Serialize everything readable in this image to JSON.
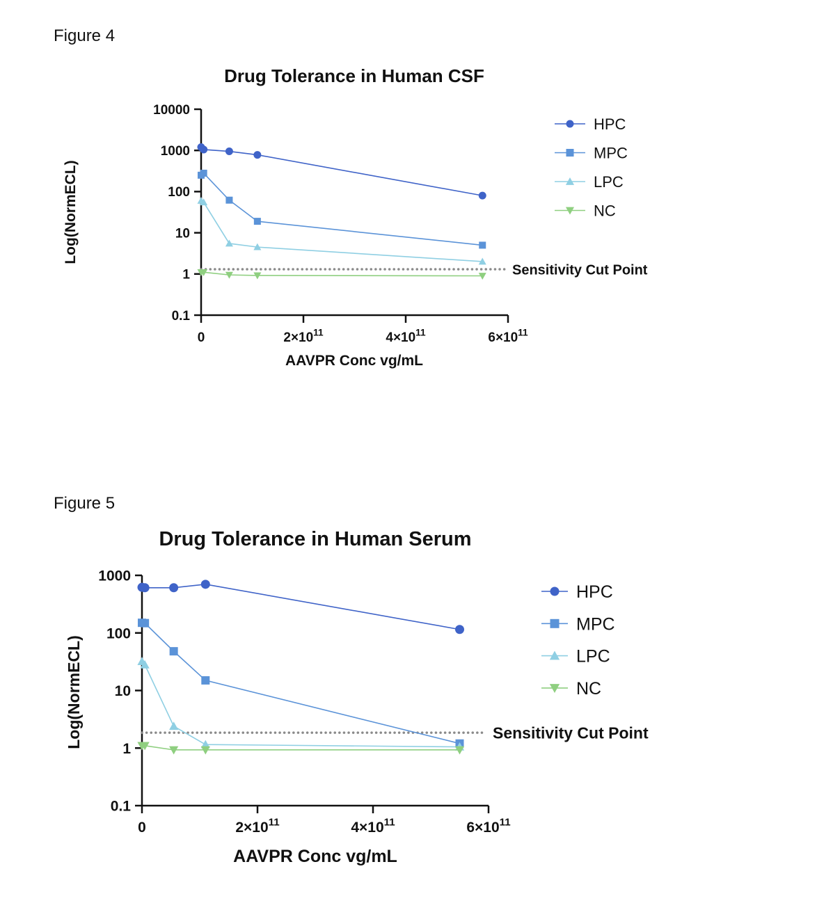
{
  "figures": [
    {
      "label": "Figure 4"
    },
    {
      "label": "Figure 5"
    }
  ],
  "chart_data": [
    {
      "type": "line",
      "title": "Drug Tolerance in Human CSF",
      "xlabel": "AAVPR Conc vg/mL",
      "ylabel": "Log(NormECL)",
      "yscale": "log",
      "xlim": [
        0,
        600000000000.0
      ],
      "ylim": [
        0.1,
        10000
      ],
      "x_ticks": [
        {
          "value": 0,
          "base": "0",
          "exp": ""
        },
        {
          "value": 200000000000.0,
          "base": "2×10",
          "exp": "11"
        },
        {
          "value": 400000000000.0,
          "base": "4×10",
          "exp": "11"
        },
        {
          "value": 600000000000.0,
          "base": "6×10",
          "exp": "11"
        }
      ],
      "y_ticks": [
        {
          "value": 0.1,
          "label": "0.1"
        },
        {
          "value": 1,
          "label": "1"
        },
        {
          "value": 10,
          "label": "10"
        },
        {
          "value": 100,
          "label": "100"
        },
        {
          "value": 1000,
          "label": "1000"
        },
        {
          "value": 10000,
          "label": "10000"
        }
      ],
      "series": [
        {
          "name": "HPC",
          "marker": "circle",
          "color": "#3f63c8",
          "x": [
            0,
            5000000000.0,
            55000000000.0,
            110000000000.0,
            550000000000.0
          ],
          "y": [
            1200,
            1050,
            950,
            780,
            80
          ]
        },
        {
          "name": "MPC",
          "marker": "square",
          "color": "#5b93d8",
          "x": [
            0,
            5000000000.0,
            55000000000.0,
            110000000000.0,
            550000000000.0
          ],
          "y": [
            250,
            280,
            62,
            19,
            5
          ]
        },
        {
          "name": "LPC",
          "marker": "triangle-up",
          "color": "#8fcfe3",
          "x": [
            0,
            5000000000.0,
            55000000000.0,
            110000000000.0,
            550000000000.0
          ],
          "y": [
            60,
            55,
            5.5,
            4.5,
            2
          ]
        },
        {
          "name": "NC",
          "marker": "triangle-down",
          "color": "#8fcf80",
          "x": [
            0,
            5000000000.0,
            55000000000.0,
            110000000000.0,
            550000000000.0
          ],
          "y": [
            1.1,
            1.1,
            0.95,
            0.92,
            0.9
          ]
        }
      ],
      "cut_point": {
        "label": "Sensitivity Cut Point",
        "value": 1.3
      },
      "legend": "top-right",
      "grid": false
    },
    {
      "type": "line",
      "title": "Drug Tolerance in Human Serum",
      "xlabel": "AAVPR Conc vg/mL",
      "ylabel": "Log(NormECL)",
      "yscale": "log",
      "xlim": [
        0,
        600000000000.0
      ],
      "ylim": [
        0.1,
        1000
      ],
      "x_ticks": [
        {
          "value": 0,
          "base": "0",
          "exp": ""
        },
        {
          "value": 200000000000.0,
          "base": "2×10",
          "exp": "11"
        },
        {
          "value": 400000000000.0,
          "base": "4×10",
          "exp": "11"
        },
        {
          "value": 600000000000.0,
          "base": "6×10",
          "exp": "11"
        }
      ],
      "y_ticks": [
        {
          "value": 0.1,
          "label": "0.1"
        },
        {
          "value": 1,
          "label": "1"
        },
        {
          "value": 10,
          "label": "10"
        },
        {
          "value": 100,
          "label": "100"
        },
        {
          "value": 1000,
          "label": "1000"
        }
      ],
      "series": [
        {
          "name": "HPC",
          "marker": "circle",
          "color": "#3f63c8",
          "x": [
            0,
            5000000000.0,
            55000000000.0,
            110000000000.0,
            550000000000.0
          ],
          "y": [
            620,
            610,
            610,
            700,
            115
          ]
        },
        {
          "name": "MPC",
          "marker": "square",
          "color": "#5b93d8",
          "x": [
            0,
            5000000000.0,
            55000000000.0,
            110000000000.0,
            550000000000.0
          ],
          "y": [
            150,
            148,
            48,
            15,
            1.2
          ]
        },
        {
          "name": "LPC",
          "marker": "triangle-up",
          "color": "#8fcfe3",
          "x": [
            0,
            5000000000.0,
            55000000000.0,
            110000000000.0,
            550000000000.0
          ],
          "y": [
            32,
            28,
            2.4,
            1.15,
            1.05
          ]
        },
        {
          "name": "NC",
          "marker": "triangle-down",
          "color": "#8fcf80",
          "x": [
            0,
            5000000000.0,
            55000000000.0,
            110000000000.0,
            550000000000.0
          ],
          "y": [
            1.1,
            1.1,
            0.93,
            0.93,
            0.93
          ]
        }
      ],
      "cut_point": {
        "label": "Sensitivity Cut Point",
        "value": 1.85
      },
      "legend": "top-right",
      "grid": false
    }
  ]
}
